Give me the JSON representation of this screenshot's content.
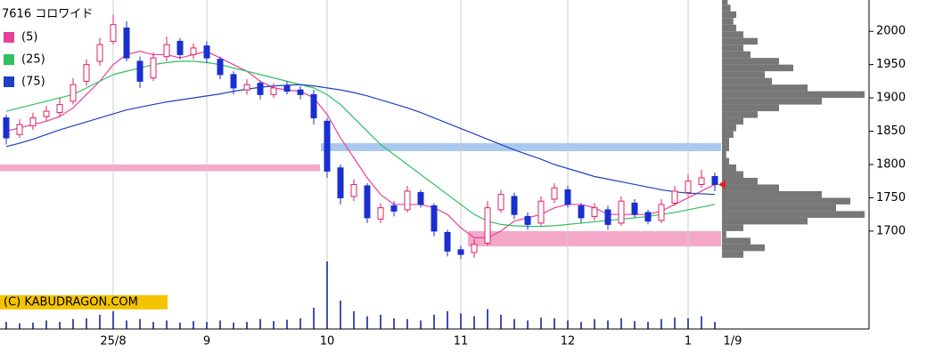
{
  "chart_data": {
    "type": "candlestick",
    "title": "7616 コロワイド",
    "watermark": "(C) KABUDRAGON.COM",
    "categories": [
      null,
      null,
      null,
      null,
      null,
      null,
      null,
      null,
      "25/8",
      null,
      null,
      null,
      null,
      null,
      null,
      "9",
      null,
      null,
      null,
      null,
      null,
      null,
      null,
      null,
      "10",
      null,
      null,
      null,
      null,
      null,
      null,
      null,
      null,
      null,
      "11",
      null,
      null,
      null,
      null,
      null,
      null,
      null,
      "12",
      null,
      null,
      null,
      null,
      null,
      null,
      null,
      null,
      "1",
      null,
      null
    ],
    "last_date": "1/9",
    "open": [
      1870,
      1845,
      1858,
      1872,
      1878,
      1895,
      1925,
      1955,
      1985,
      2005,
      1955,
      1930,
      1962,
      1985,
      1965,
      1978,
      1958,
      1935,
      1912,
      1922,
      1905,
      1918,
      1912,
      1905,
      1865,
      1795,
      1752,
      1768,
      1718,
      1738,
      1732,
      1758,
      1738,
      1698,
      1672,
      1668,
      1682,
      1732,
      1752,
      1722,
      1712,
      1748,
      1762,
      1738,
      1722,
      1732,
      1712,
      1742,
      1728,
      1716,
      1742,
      1758,
      1770,
      1782
    ],
    "high": [
      1875,
      1868,
      1878,
      1888,
      1900,
      1930,
      1958,
      1990,
      2025,
      2015,
      1962,
      1968,
      1992,
      1990,
      1982,
      1985,
      1962,
      1940,
      1928,
      1926,
      1922,
      1925,
      1918,
      1912,
      1870,
      1800,
      1778,
      1772,
      1742,
      1745,
      1768,
      1762,
      1742,
      1702,
      1678,
      1688,
      1745,
      1762,
      1758,
      1728,
      1752,
      1772,
      1768,
      1742,
      1742,
      1738,
      1752,
      1748,
      1732,
      1748,
      1768,
      1785,
      1792,
      1788
    ],
    "low": [
      1830,
      1840,
      1852,
      1865,
      1872,
      1890,
      1918,
      1948,
      1980,
      1955,
      1915,
      1925,
      1955,
      1958,
      1958,
      1952,
      1928,
      1905,
      1905,
      1898,
      1900,
      1905,
      1898,
      1860,
      1780,
      1740,
      1745,
      1712,
      1712,
      1722,
      1728,
      1735,
      1692,
      1662,
      1658,
      1660,
      1678,
      1728,
      1718,
      1702,
      1708,
      1742,
      1735,
      1712,
      1716,
      1702,
      1708,
      1720,
      1710,
      1712,
      1738,
      1752,
      1765,
      1760
    ],
    "close": [
      1840,
      1860,
      1870,
      1880,
      1890,
      1920,
      1950,
      1980,
      2010,
      1960,
      1925,
      1960,
      1980,
      1965,
      1975,
      1960,
      1935,
      1915,
      1920,
      1905,
      1915,
      1910,
      1905,
      1870,
      1790,
      1750,
      1770,
      1720,
      1735,
      1730,
      1760,
      1740,
      1700,
      1670,
      1665,
      1680,
      1735,
      1755,
      1725,
      1710,
      1745,
      1765,
      1740,
      1720,
      1735,
      1710,
      1745,
      1725,
      1715,
      1740,
      1760,
      1775,
      1780,
      1770
    ],
    "series": [
      {
        "name": "(5)",
        "color": "#e8409a",
        "values": [
          1850,
          1855,
          1860,
          1865,
          1872,
          1885,
          1905,
          1925,
          1950,
          1965,
          1970,
          1965,
          1965,
          1960,
          1965,
          1970,
          1960,
          1950,
          1940,
          1925,
          1915,
          1912,
          1910,
          1900,
          1875,
          1840,
          1810,
          1780,
          1755,
          1740,
          1740,
          1740,
          1735,
          1725,
          1705,
          1690,
          1690,
          1700,
          1715,
          1720,
          1725,
          1735,
          1740,
          1740,
          1735,
          1725,
          1725,
          1725,
          1725,
          1730,
          1740,
          1750,
          1760,
          1770
        ]
      },
      {
        "name": "(25)",
        "color": "#30c060",
        "values": [
          1880,
          1885,
          1890,
          1895,
          1900,
          1905,
          1915,
          1925,
          1935,
          1940,
          1945,
          1950,
          1953,
          1955,
          1955,
          1953,
          1950,
          1945,
          1940,
          1935,
          1930,
          1925,
          1920,
          1915,
          1905,
          1890,
          1870,
          1850,
          1830,
          1815,
          1800,
          1785,
          1770,
          1755,
          1740,
          1725,
          1715,
          1710,
          1708,
          1707,
          1707,
          1708,
          1710,
          1712,
          1714,
          1716,
          1718,
          1720,
          1722,
          1725,
          1728,
          1732,
          1736,
          1740
        ]
      },
      {
        "name": "(75)",
        "color": "#2040c0",
        "values": [
          1827,
          1832,
          1838,
          1845,
          1852,
          1858,
          1864,
          1870,
          1876,
          1882,
          1886,
          1890,
          1894,
          1897,
          1900,
          1903,
          1906,
          1910,
          1913,
          1916,
          1918,
          1919,
          1920,
          1918,
          1915,
          1912,
          1908,
          1903,
          1897,
          1891,
          1885,
          1878,
          1870,
          1862,
          1854,
          1846,
          1838,
          1830,
          1822,
          1815,
          1808,
          1800,
          1794,
          1788,
          1782,
          1778,
          1774,
          1770,
          1766,
          1762,
          1759,
          1757,
          1756,
          1755
        ]
      }
    ],
    "up_color": "#e02060",
    "down_color": "#1a2fd0",
    "volume": [
      10,
      8,
      9,
      12,
      10,
      14,
      15,
      20,
      25,
      12,
      14,
      10,
      12,
      9,
      11,
      10,
      12,
      9,
      10,
      14,
      11,
      13,
      15,
      30,
      95,
      40,
      25,
      18,
      20,
      15,
      14,
      12,
      20,
      25,
      22,
      18,
      28,
      20,
      14,
      12,
      16,
      15,
      12,
      10,
      14,
      12,
      15,
      11,
      10,
      14,
      16,
      15,
      18,
      10
    ],
    "volume_lim": [
      0,
      100
    ],
    "volume_color": "#4050b0",
    "bands": [
      {
        "from": 1790,
        "to": 1800,
        "start": 0,
        "end": 23,
        "color": "#f4a8c8"
      },
      {
        "from": 1820,
        "to": 1832,
        "start": 24,
        "end": 53,
        "color": "#a8c8f0"
      },
      {
        "from": 1677,
        "to": 1700,
        "start": 35,
        "end": 53,
        "color": "#f4a8c8"
      }
    ],
    "profile": {
      "color": "#777777",
      "levels": [
        1665,
        1675,
        1685,
        1695,
        1705,
        1715,
        1725,
        1735,
        1745,
        1755,
        1765,
        1775,
        1785,
        1795,
        1805,
        1815,
        1825,
        1835,
        1845,
        1855,
        1865,
        1875,
        1885,
        1895,
        1905,
        1915,
        1925,
        1935,
        1945,
        1955,
        1965,
        1975,
        1985,
        1995,
        2005,
        2015,
        2025,
        2035,
        2045
      ],
      "values": [
        15,
        30,
        20,
        3,
        15,
        60,
        100,
        80,
        90,
        70,
        40,
        25,
        15,
        10,
        5,
        3,
        5,
        5,
        8,
        10,
        15,
        25,
        40,
        70,
        100,
        60,
        35,
        30,
        50,
        40,
        20,
        15,
        25,
        15,
        10,
        8,
        10,
        6,
        4
      ],
      "xlim": [
        0,
        100
      ]
    },
    "ylim": [
      1553,
      2047
    ],
    "yticks": [
      1700,
      1750,
      1800,
      1850,
      1900,
      1950,
      2000
    ]
  }
}
